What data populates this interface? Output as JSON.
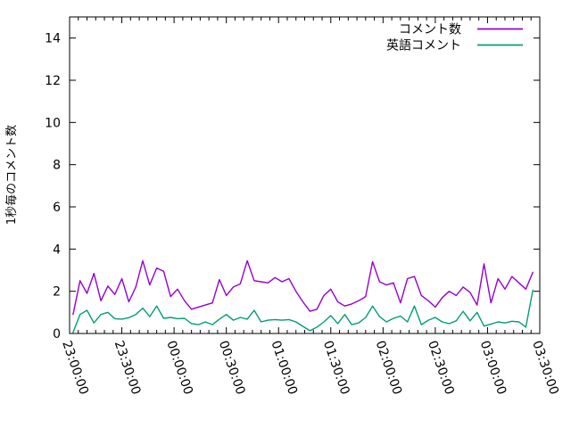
{
  "chart_data": {
    "type": "line",
    "title": "",
    "xlabel": "",
    "ylabel": "1秒毎のコメント数",
    "ylim": [
      0,
      15
    ],
    "yticks": [
      0,
      2,
      4,
      6,
      8,
      10,
      12,
      14
    ],
    "xlim_minutes_after_2300": [
      0,
      270
    ],
    "xtick_interval_minutes": 30,
    "xtick_minor_interval_minutes": 5,
    "xtick_labels": [
      "23:00:00",
      "23:30:00",
      "00:00:00",
      "00:30:00",
      "01:00:00",
      "01:30:00",
      "02:00:00",
      "02:30:00",
      "03:00:00",
      "03:30:00"
    ],
    "grid": false,
    "legend_position": "top-right-inside",
    "axis_color": "#000000",
    "x_minutes_after_2300": [
      2,
      6,
      10,
      14,
      18,
      22,
      26,
      30,
      34,
      38,
      42,
      46,
      50,
      54,
      58,
      62,
      66,
      70,
      74,
      78,
      82,
      86,
      90,
      94,
      98,
      102,
      106,
      110,
      114,
      118,
      122,
      126,
      130,
      134,
      138,
      142,
      146,
      150,
      154,
      158,
      162,
      166,
      170,
      174,
      178,
      182,
      186,
      190,
      194,
      198,
      202,
      206,
      210,
      214,
      218,
      222,
      226,
      230,
      234,
      238,
      242,
      246,
      250,
      254,
      258,
      262,
      266
    ],
    "series": [
      {
        "name": "コメント数",
        "color": "#9400d3",
        "values": [
          0.9,
          2.5,
          1.9,
          2.85,
          1.55,
          2.25,
          1.85,
          2.6,
          1.5,
          2.2,
          3.45,
          2.3,
          3.1,
          2.95,
          1.75,
          2.1,
          1.55,
          1.15,
          1.25,
          1.35,
          1.45,
          2.55,
          1.8,
          2.2,
          2.35,
          3.45,
          2.5,
          2.45,
          2.4,
          2.65,
          2.45,
          2.6,
          2.0,
          1.5,
          1.05,
          1.15,
          1.8,
          2.1,
          1.5,
          1.3,
          1.4,
          1.55,
          1.75,
          3.4,
          2.45,
          2.3,
          2.4,
          1.45,
          2.6,
          2.7,
          1.8,
          1.55,
          1.25,
          1.7,
          2.0,
          1.8,
          2.2,
          1.95,
          1.35,
          3.3,
          1.45,
          2.6,
          2.1,
          2.7,
          2.4,
          2.1,
          2.9
        ]
      },
      {
        "name": "英語コメント",
        "color": "#009e73",
        "values": [
          0.05,
          0.9,
          1.1,
          0.5,
          0.9,
          1.0,
          0.7,
          0.68,
          0.75,
          0.9,
          1.2,
          0.8,
          1.3,
          0.72,
          0.76,
          0.7,
          0.72,
          0.47,
          0.42,
          0.55,
          0.42,
          0.68,
          0.9,
          0.63,
          0.76,
          0.68,
          1.1,
          0.55,
          0.63,
          0.66,
          0.63,
          0.66,
          0.55,
          0.34,
          0.13,
          0.3,
          0.55,
          0.85,
          0.47,
          0.9,
          0.42,
          0.5,
          0.76,
          1.3,
          0.8,
          0.55,
          0.72,
          0.83,
          0.55,
          1.3,
          0.42,
          0.63,
          0.76,
          0.55,
          0.47,
          0.6,
          1.05,
          0.6,
          1.0,
          0.35,
          0.45,
          0.55,
          0.5,
          0.58,
          0.55,
          0.3,
          2.05
        ]
      }
    ]
  }
}
